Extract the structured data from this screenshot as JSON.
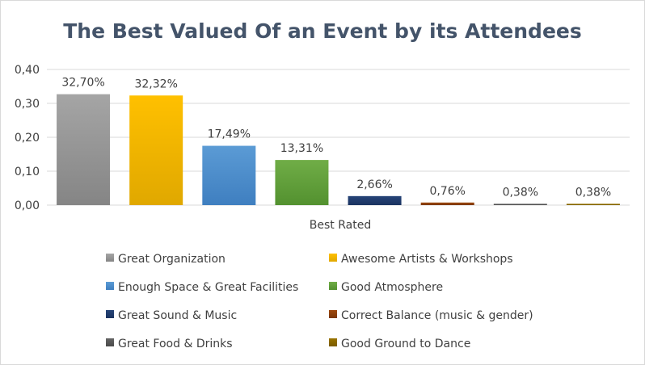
{
  "chart_data": {
    "type": "bar",
    "title": "The Best Valued Of an Event by its Attendees",
    "xlabel": "Best Rated",
    "ylabel": "",
    "ylim": [
      0,
      0.4
    ],
    "yticks": [
      "0,00",
      "0,10",
      "0,20",
      "0,30",
      "0,40"
    ],
    "grid": true,
    "legend_position": "bottom",
    "series": [
      {
        "name": "Great Organization",
        "value": 0.327,
        "label": "32,70%",
        "color": "#a5a5a5",
        "color_dark": "#858585"
      },
      {
        "name": "Awesome Artists & Workshops",
        "value": 0.3232,
        "label": "32,32%",
        "color": "#ffc000",
        "color_dark": "#e0a800"
      },
      {
        "name": "Enough Space & Great Facilities",
        "value": 0.1749,
        "label": "17,49%",
        "color": "#5b9bd5",
        "color_dark": "#3f7fc0"
      },
      {
        "name": "Good Atmosphere",
        "value": 0.1331,
        "label": "13,31%",
        "color": "#70ad47",
        "color_dark": "#53912f"
      },
      {
        "name": "Great Sound & Music",
        "value": 0.0266,
        "label": "2,66%",
        "color": "#264478",
        "color_dark": "#1a3360"
      },
      {
        "name": "Correct Balance (music & gender)",
        "value": 0.0076,
        "label": "0,76%",
        "color": "#9e480e",
        "color_dark": "#7a3608"
      },
      {
        "name": "Great Food & Drinks",
        "value": 0.0038,
        "label": "0,38%",
        "color": "#636363",
        "color_dark": "#4a4a4a"
      },
      {
        "name": "Good Ground to Dance",
        "value": 0.0038,
        "label": "0,38%",
        "color": "#997300",
        "color_dark": "#7a5c00"
      }
    ]
  }
}
